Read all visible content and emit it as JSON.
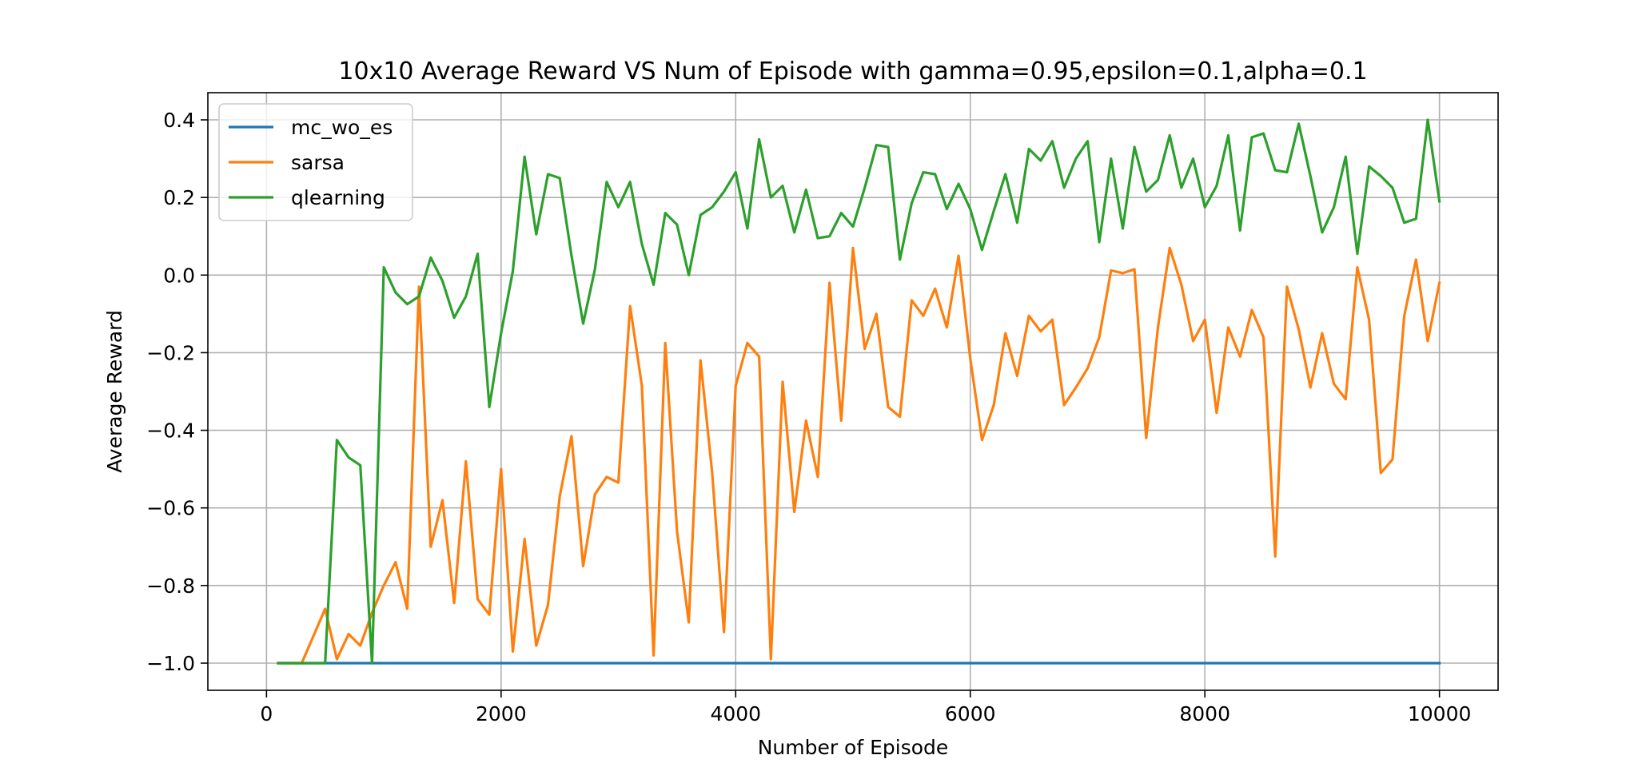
{
  "chart_data": {
    "type": "line",
    "title": "10x10 Average Reward VS Num of Episode with gamma=0.95,epsilon=0.1,alpha=0.1",
    "xlabel": "Number of Episode",
    "ylabel": "Average Reward",
    "xlim": [
      -500,
      10500
    ],
    "ylim": [
      -1.07,
      0.47
    ],
    "xticks": [
      0,
      2000,
      4000,
      6000,
      8000,
      10000
    ],
    "xtick_labels": [
      "0",
      "2000",
      "4000",
      "6000",
      "8000",
      "10000"
    ],
    "yticks": [
      -1.0,
      -0.8,
      -0.6,
      -0.4,
      -0.2,
      0.0,
      0.2,
      0.4
    ],
    "ytick_labels": [
      "−1.0",
      "−0.8",
      "−0.6",
      "−0.4",
      "−0.2",
      "0.0",
      "0.2",
      "0.4"
    ],
    "grid": true,
    "legend_position": "top-left",
    "x": [
      100,
      200,
      300,
      400,
      500,
      600,
      700,
      800,
      900,
      1000,
      1100,
      1200,
      1300,
      1400,
      1500,
      1600,
      1700,
      1800,
      1900,
      2000,
      2100,
      2200,
      2300,
      2400,
      2500,
      2600,
      2700,
      2800,
      2900,
      3000,
      3100,
      3200,
      3300,
      3400,
      3500,
      3600,
      3700,
      3800,
      3900,
      4000,
      4100,
      4200,
      4300,
      4400,
      4500,
      4600,
      4700,
      4800,
      4900,
      5000,
      5100,
      5200,
      5300,
      5400,
      5500,
      5600,
      5700,
      5800,
      5900,
      6000,
      6100,
      6200,
      6300,
      6400,
      6500,
      6600,
      6700,
      6800,
      6900,
      7000,
      7100,
      7200,
      7300,
      7400,
      7500,
      7600,
      7700,
      7800,
      7900,
      8000,
      8100,
      8200,
      8300,
      8400,
      8500,
      8600,
      8700,
      8800,
      8900,
      9000,
      9100,
      9200,
      9300,
      9400,
      9500,
      9600,
      9700,
      9800,
      9900,
      10000
    ],
    "series": [
      {
        "name": "mc_wo_es",
        "color": "#1f77b4",
        "values": [
          -1.0,
          -1.0,
          -1.0,
          -1.0,
          -1.0,
          -1.0,
          -1.0,
          -1.0,
          -1.0,
          -1.0,
          -1.0,
          -1.0,
          -1.0,
          -1.0,
          -1.0,
          -1.0,
          -1.0,
          -1.0,
          -1.0,
          -1.0,
          -1.0,
          -1.0,
          -1.0,
          -1.0,
          -1.0,
          -1.0,
          -1.0,
          -1.0,
          -1.0,
          -1.0,
          -1.0,
          -1.0,
          -1.0,
          -1.0,
          -1.0,
          -1.0,
          -1.0,
          -1.0,
          -1.0,
          -1.0,
          -1.0,
          -1.0,
          -1.0,
          -1.0,
          -1.0,
          -1.0,
          -1.0,
          -1.0,
          -1.0,
          -1.0,
          -1.0,
          -1.0,
          -1.0,
          -1.0,
          -1.0,
          -1.0,
          -1.0,
          -1.0,
          -1.0,
          -1.0,
          -1.0,
          -1.0,
          -1.0,
          -1.0,
          -1.0,
          -1.0,
          -1.0,
          -1.0,
          -1.0,
          -1.0,
          -1.0,
          -1.0,
          -1.0,
          -1.0,
          -1.0,
          -1.0,
          -1.0,
          -1.0,
          -1.0,
          -1.0,
          -1.0,
          -1.0,
          -1.0,
          -1.0,
          -1.0,
          -1.0,
          -1.0,
          -1.0,
          -1.0,
          -1.0,
          -1.0,
          -1.0,
          -1.0,
          -1.0,
          -1.0,
          -1.0,
          -1.0,
          -1.0,
          -1.0,
          -1.0
        ]
      },
      {
        "name": "sarsa",
        "color": "#ff7f0e",
        "values": [
          -1.0,
          -1.0,
          -1.0,
          -0.93,
          -0.86,
          -0.99,
          -0.925,
          -0.955,
          -0.87,
          -0.8,
          -0.74,
          -0.86,
          -0.03,
          -0.7,
          -0.58,
          -0.845,
          -0.48,
          -0.835,
          -0.875,
          -0.5,
          -0.97,
          -0.68,
          -0.955,
          -0.85,
          -0.57,
          -0.415,
          -0.75,
          -0.565,
          -0.52,
          -0.535,
          -0.08,
          -0.285,
          -0.98,
          -0.175,
          -0.66,
          -0.895,
          -0.22,
          -0.51,
          -0.92,
          -0.285,
          -0.175,
          -0.21,
          -0.99,
          -0.275,
          -0.61,
          -0.375,
          -0.52,
          -0.02,
          -0.375,
          0.07,
          -0.19,
          -0.1,
          -0.34,
          -0.365,
          -0.065,
          -0.105,
          -0.035,
          -0.135,
          0.05,
          -0.215,
          -0.425,
          -0.335,
          -0.15,
          -0.26,
          -0.105,
          -0.145,
          -0.115,
          -0.335,
          -0.29,
          -0.24,
          -0.16,
          0.012,
          0.005,
          0.015,
          -0.42,
          -0.135,
          0.07,
          -0.025,
          -0.17,
          -0.115,
          -0.355,
          -0.135,
          -0.21,
          -0.09,
          -0.16,
          -0.725,
          -0.03,
          -0.14,
          -0.29,
          -0.15,
          -0.28,
          -0.32,
          0.02,
          -0.115,
          -0.51,
          -0.475,
          -0.105,
          0.04,
          -0.17,
          -0.02
        ]
      },
      {
        "name": "qlearning",
        "color": "#2ca02c",
        "values": [
          -1.0,
          -1.0,
          -1.0,
          -1.0,
          -1.0,
          -0.425,
          -0.47,
          -0.49,
          -1.0,
          0.02,
          -0.045,
          -0.075,
          -0.055,
          0.045,
          -0.015,
          -0.11,
          -0.055,
          0.055,
          -0.34,
          -0.15,
          0.01,
          0.305,
          0.105,
          0.26,
          0.25,
          0.05,
          -0.125,
          0.015,
          0.24,
          0.175,
          0.24,
          0.08,
          -0.025,
          0.16,
          0.13,
          0.0,
          0.155,
          0.175,
          0.215,
          0.265,
          0.12,
          0.35,
          0.2,
          0.23,
          0.11,
          0.22,
          0.095,
          0.1,
          0.16,
          0.125,
          0.225,
          0.335,
          0.33,
          0.04,
          0.185,
          0.265,
          0.26,
          0.17,
          0.235,
          0.17,
          0.065,
          0.165,
          0.26,
          0.135,
          0.325,
          0.295,
          0.345,
          0.225,
          0.3,
          0.345,
          0.085,
          0.3,
          0.12,
          0.33,
          0.215,
          0.245,
          0.36,
          0.225,
          0.3,
          0.175,
          0.23,
          0.36,
          0.115,
          0.355,
          0.365,
          0.27,
          0.265,
          0.39,
          0.255,
          0.11,
          0.175,
          0.305,
          0.055,
          0.28,
          0.255,
          0.225,
          0.135,
          0.145,
          0.4,
          0.19
        ]
      }
    ]
  }
}
